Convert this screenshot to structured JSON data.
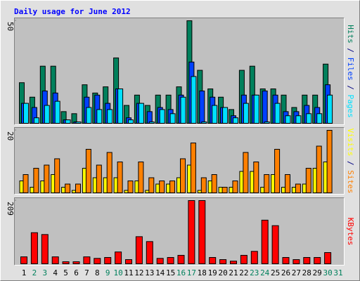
{
  "chart_data": {
    "type": "bar",
    "title": "Daily usage for June 2012",
    "categories": [
      "1",
      "2",
      "3",
      "4",
      "5",
      "6",
      "7",
      "8",
      "9",
      "10",
      "11",
      "12",
      "13",
      "14",
      "15",
      "16",
      "17",
      "18",
      "19",
      "20",
      "21",
      "22",
      "23",
      "24",
      "25",
      "26",
      "27",
      "28",
      "29",
      "30",
      "31"
    ],
    "category_colors": [
      "#000000",
      "#00805c",
      "#00805c",
      "#000000",
      "#000000",
      "#000000",
      "#000000",
      "#000000",
      "#00805c",
      "#00805c",
      "#000000",
      "#000000",
      "#000000",
      "#000000",
      "#000000",
      "#00805c",
      "#00805c",
      "#000000",
      "#000000",
      "#000000",
      "#000000",
      "#000000",
      "#00805c",
      "#00805c",
      "#000000",
      "#000000",
      "#000000",
      "#000000",
      "#000000",
      "#00805c",
      "#00805c"
    ],
    "legend_separator": " / ",
    "panels": [
      {
        "ylim": [
          0,
          50
        ],
        "yticks": [
          50
        ],
        "series": [
          {
            "name": "Hits",
            "color": "#00805c",
            "values": [
              20,
              13,
              28,
              28,
              6,
              5,
              19,
              15,
              18,
              32,
              9,
              14,
              9,
              14,
              14,
              18,
              50,
              26,
              17,
              13,
              7,
              26,
              28,
              17,
              17,
              14,
              8,
              14,
              14,
              29,
              0
            ]
          },
          {
            "name": "Files",
            "color": "#0040ff",
            "values": [
              10,
              8,
              16,
              15,
              2,
              1,
              13,
              14,
              10,
              17,
              3,
              10,
              6,
              8,
              7,
              14,
              30,
              16,
              13,
              8,
              4,
              14,
              14,
              16,
              14,
              6,
              6,
              9,
              8,
              19,
              0
            ]
          },
          {
            "name": "Pages",
            "color": "#00e0ff",
            "values": [
              10,
              3,
              9,
              11,
              2,
              1,
              8,
              7,
              7,
              17,
              2,
              10,
              1,
              7,
              5,
              13,
              23,
              1,
              9,
              8,
              3,
              10,
              14,
              1,
              10,
              4,
              4,
              5,
              5,
              14,
              0
            ]
          }
        ]
      },
      {
        "ylim": [
          0,
          20
        ],
        "yticks": [
          20
        ],
        "series": [
          {
            "name": "Visits",
            "color": "#ffff00",
            "values": [
              4,
              2,
              4,
              6,
              2,
              1,
              8,
              5,
              5,
              5,
              1,
              4,
              1,
              3,
              3,
              5,
              9,
              1,
              4,
              2,
              2,
              7,
              7,
              2,
              6,
              2,
              2,
              3,
              8,
              10,
              0
            ]
          },
          {
            "name": "Sites",
            "color": "#ff8000",
            "values": [
              6,
              8,
              9,
              11,
              3,
              3,
              14,
              9,
              13,
              10,
              4,
              10,
              5,
              4,
              4,
              11,
              16,
              5,
              6,
              2,
              4,
              13,
              10,
              6,
              14,
              6,
              3,
              8,
              15,
              20,
              0
            ]
          }
        ]
      },
      {
        "ylim": [
          0,
          209
        ],
        "yticks": [
          209
        ],
        "series": [
          {
            "name": "KBytes",
            "color": "#ff0000",
            "values": [
              25,
              104,
              98,
              25,
              9,
              9,
              25,
              20,
              23,
              41,
              16,
              91,
              75,
              20,
              23,
              30,
              209,
              209,
              23,
              16,
              11,
              30,
              43,
              145,
              127,
              23,
              16,
              23,
              23,
              39,
              0
            ]
          }
        ]
      }
    ]
  }
}
